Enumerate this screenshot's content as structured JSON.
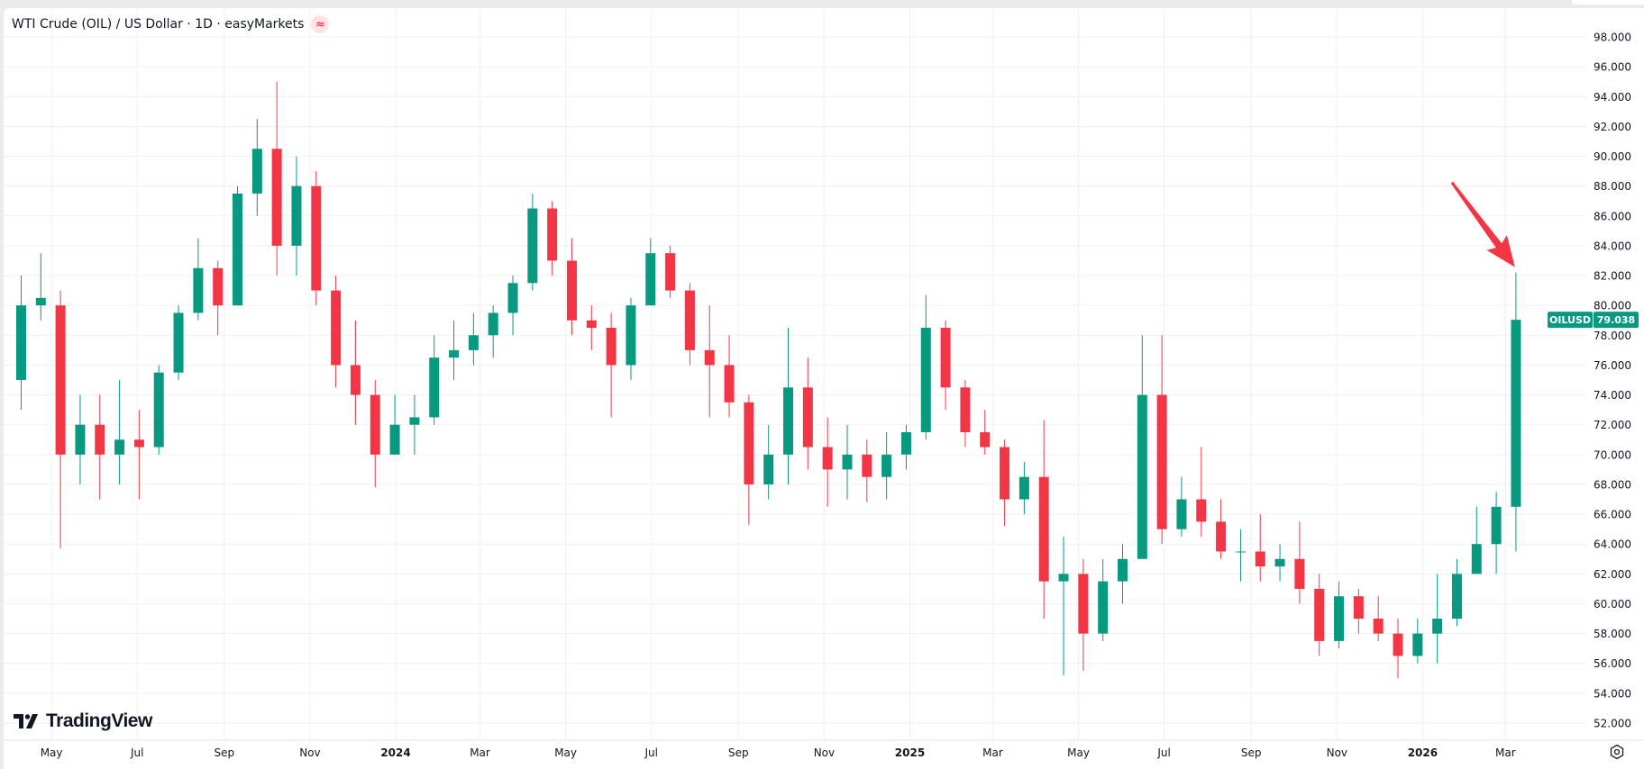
{
  "header": {
    "title": "WTI Crude (OIL) / US Dollar · 1D · easyMarkets",
    "badge_icon": "approx-equal-icon",
    "badge_glyph": "≈"
  },
  "branding": {
    "logo_text": "TradingView"
  },
  "settings_icon": "gear-icon",
  "colors": {
    "up": "#089981",
    "down": "#F23645",
    "arrow": "#F23645",
    "grid": "#F0F3FA",
    "axis_text": "#131722"
  },
  "chart_data": {
    "type": "candlestick",
    "symbol": "OILUSD",
    "interval": "1D",
    "last_price": "79.038",
    "grid": true,
    "ylim": [
      50.5,
      99.5
    ],
    "y_ticks": [
      "52.000",
      "54.000",
      "56.000",
      "58.000",
      "60.000",
      "62.000",
      "64.000",
      "66.000",
      "68.000",
      "70.000",
      "72.000",
      "74.000",
      "76.000",
      "78.000",
      "80.000",
      "82.000",
      "84.000",
      "86.000",
      "88.000",
      "90.000",
      "92.000",
      "94.000",
      "96.000",
      "98.000"
    ],
    "x_ticks": [
      {
        "label": "May",
        "date": "2023-05-01",
        "bold": false
      },
      {
        "label": "Jul",
        "date": "2023-07-01",
        "bold": false
      },
      {
        "label": "Sep",
        "date": "2023-09-01",
        "bold": false
      },
      {
        "label": "Nov",
        "date": "2023-11-01",
        "bold": false
      },
      {
        "label": "2024",
        "date": "2024-01-01",
        "bold": true
      },
      {
        "label": "Mar",
        "date": "2024-03-01",
        "bold": false
      },
      {
        "label": "May",
        "date": "2024-05-01",
        "bold": false
      },
      {
        "label": "Jul",
        "date": "2024-07-01",
        "bold": false
      },
      {
        "label": "Sep",
        "date": "2024-09-01",
        "bold": false
      },
      {
        "label": "Nov",
        "date": "2024-11-01",
        "bold": false
      },
      {
        "label": "2025",
        "date": "2025-01-01",
        "bold": true
      },
      {
        "label": "Mar",
        "date": "2025-03-01",
        "bold": false
      },
      {
        "label": "May",
        "date": "2025-05-01",
        "bold": false
      },
      {
        "label": "Jul",
        "date": "2025-07-01",
        "bold": false
      },
      {
        "label": "Sep",
        "date": "2025-09-01",
        "bold": false
      },
      {
        "label": "Nov",
        "date": "2025-11-01",
        "bold": false
      },
      {
        "label": "2026",
        "date": "2026-01-01",
        "bold": true
      },
      {
        "label": "Mar",
        "date": "2026-03-01",
        "bold": false
      }
    ],
    "ohlc_columns": [
      "date",
      "open",
      "high",
      "low",
      "close"
    ],
    "ohlc": [
      [
        "2023-04-03",
        75,
        82,
        73,
        80
      ],
      [
        "2023-04-17",
        80,
        83.5,
        79,
        80.5
      ],
      [
        "2023-05-01",
        80,
        81,
        63.7,
        70
      ],
      [
        "2023-05-15",
        70,
        74,
        68,
        72
      ],
      [
        "2023-05-29",
        72,
        74,
        67,
        70
      ],
      [
        "2023-06-12",
        70,
        75,
        68,
        71
      ],
      [
        "2023-06-26",
        71,
        73,
        67,
        70.5
      ],
      [
        "2023-07-10",
        70.5,
        76,
        70,
        75.5
      ],
      [
        "2023-07-24",
        75.5,
        80,
        75,
        79.5
      ],
      [
        "2023-08-07",
        79.5,
        84.5,
        79,
        82.5
      ],
      [
        "2023-08-21",
        82.5,
        83,
        78,
        80
      ],
      [
        "2023-09-04",
        80,
        88,
        80,
        87.5
      ],
      [
        "2023-09-18",
        87.5,
        92.5,
        86,
        90.5
      ],
      [
        "2023-10-02",
        90.5,
        95,
        82,
        84
      ],
      [
        "2023-10-16",
        84,
        90,
        82,
        88
      ],
      [
        "2023-10-30",
        88,
        89,
        80,
        81
      ],
      [
        "2023-11-13",
        81,
        82,
        74.5,
        76
      ],
      [
        "2023-11-27",
        76,
        79,
        72,
        74
      ],
      [
        "2023-12-11",
        74,
        75,
        67.8,
        70
      ],
      [
        "2023-12-25",
        70,
        74,
        70,
        72
      ],
      [
        "2024-01-08",
        72,
        74,
        70,
        72.5
      ],
      [
        "2024-01-22",
        72.5,
        78,
        72,
        76.5
      ],
      [
        "2024-02-05",
        76.5,
        79,
        75,
        77
      ],
      [
        "2024-02-19",
        77,
        79.5,
        76,
        78
      ],
      [
        "2024-03-04",
        78,
        80,
        76.5,
        79.5
      ],
      [
        "2024-03-18",
        79.5,
        82,
        78,
        81.5
      ],
      [
        "2024-04-01",
        81.5,
        87.5,
        81,
        86.5
      ],
      [
        "2024-04-15",
        86.5,
        87,
        82,
        83
      ],
      [
        "2024-04-29",
        83,
        84.5,
        78,
        79
      ],
      [
        "2024-05-13",
        79,
        80,
        77,
        78.5
      ],
      [
        "2024-05-27",
        78.5,
        79.5,
        72.5,
        76
      ],
      [
        "2024-06-10",
        76,
        80.5,
        75,
        80
      ],
      [
        "2024-06-24",
        80,
        84.5,
        80,
        83.5
      ],
      [
        "2024-07-08",
        83.5,
        84,
        80.5,
        81
      ],
      [
        "2024-07-22",
        81,
        81.5,
        76,
        77
      ],
      [
        "2024-08-05",
        77,
        80,
        72.5,
        76
      ],
      [
        "2024-08-19",
        76,
        78,
        72.5,
        73.5
      ],
      [
        "2024-09-02",
        73.5,
        74,
        65.3,
        68
      ],
      [
        "2024-09-16",
        68,
        72,
        67,
        70
      ],
      [
        "2024-09-30",
        70,
        78.5,
        68,
        74.5
      ],
      [
        "2024-10-14",
        74.5,
        76.5,
        69,
        70.5
      ],
      [
        "2024-10-28",
        70.5,
        72.5,
        66.5,
        69
      ],
      [
        "2024-11-11",
        69,
        72,
        67,
        70
      ],
      [
        "2024-11-25",
        70,
        71,
        66.8,
        68.5
      ],
      [
        "2024-12-09",
        68.5,
        71.5,
        67,
        70
      ],
      [
        "2024-12-23",
        70,
        72,
        69,
        71.5
      ],
      [
        "2025-01-06",
        71.5,
        80.7,
        71,
        78.5
      ],
      [
        "2025-01-20",
        78.5,
        79,
        73,
        74.5
      ],
      [
        "2025-02-03",
        74.5,
        75,
        70.5,
        71.5
      ],
      [
        "2025-02-17",
        71.5,
        73,
        70,
        70.5
      ],
      [
        "2025-03-03",
        70.5,
        71,
        65.2,
        67
      ],
      [
        "2025-03-17",
        67,
        69.5,
        66,
        68.5
      ],
      [
        "2025-03-31",
        68.5,
        72.3,
        59,
        61.5
      ],
      [
        "2025-04-14",
        61.5,
        64.5,
        55.2,
        62
      ],
      [
        "2025-04-28",
        62,
        63,
        55.5,
        58
      ],
      [
        "2025-05-12",
        58,
        63,
        57.5,
        61.5
      ],
      [
        "2025-05-26",
        61.5,
        64,
        60,
        63
      ],
      [
        "2025-06-09",
        63,
        78,
        63,
        74
      ],
      [
        "2025-06-23",
        74,
        78,
        64,
        65
      ],
      [
        "2025-07-07",
        65,
        68.5,
        64.5,
        67
      ],
      [
        "2025-07-21",
        67,
        70.5,
        64.5,
        65.5
      ],
      [
        "2025-08-04",
        65.5,
        67,
        63,
        63.5
      ],
      [
        "2025-08-18",
        63.5,
        65,
        61.5,
        63.5
      ],
      [
        "2025-09-01",
        63.5,
        66,
        61.5,
        62.5
      ],
      [
        "2025-09-15",
        62.5,
        64,
        61.5,
        63
      ],
      [
        "2025-09-29",
        63,
        65.5,
        60,
        61
      ],
      [
        "2025-10-13",
        61,
        62,
        56.5,
        57.5
      ],
      [
        "2025-10-27",
        57.5,
        61.5,
        57,
        60.5
      ],
      [
        "2025-11-10",
        60.5,
        61,
        58,
        59
      ],
      [
        "2025-11-24",
        59,
        60.5,
        57.5,
        58
      ],
      [
        "2025-12-08",
        58,
        59,
        55,
        56.5
      ],
      [
        "2025-12-22",
        56.5,
        59,
        56,
        58
      ],
      [
        "2026-01-05",
        58,
        62,
        56,
        59
      ],
      [
        "2026-01-19",
        59,
        63,
        58.5,
        62
      ],
      [
        "2026-02-02",
        62,
        66.5,
        62,
        64
      ],
      [
        "2026-02-16",
        64,
        67.5,
        62,
        66.5
      ],
      [
        "2026-03-02",
        66.5,
        82.2,
        63.5,
        79.038
      ]
    ],
    "annotations": [
      {
        "type": "arrow",
        "points_to": "last-candle-high",
        "color": "#F23645"
      }
    ]
  }
}
